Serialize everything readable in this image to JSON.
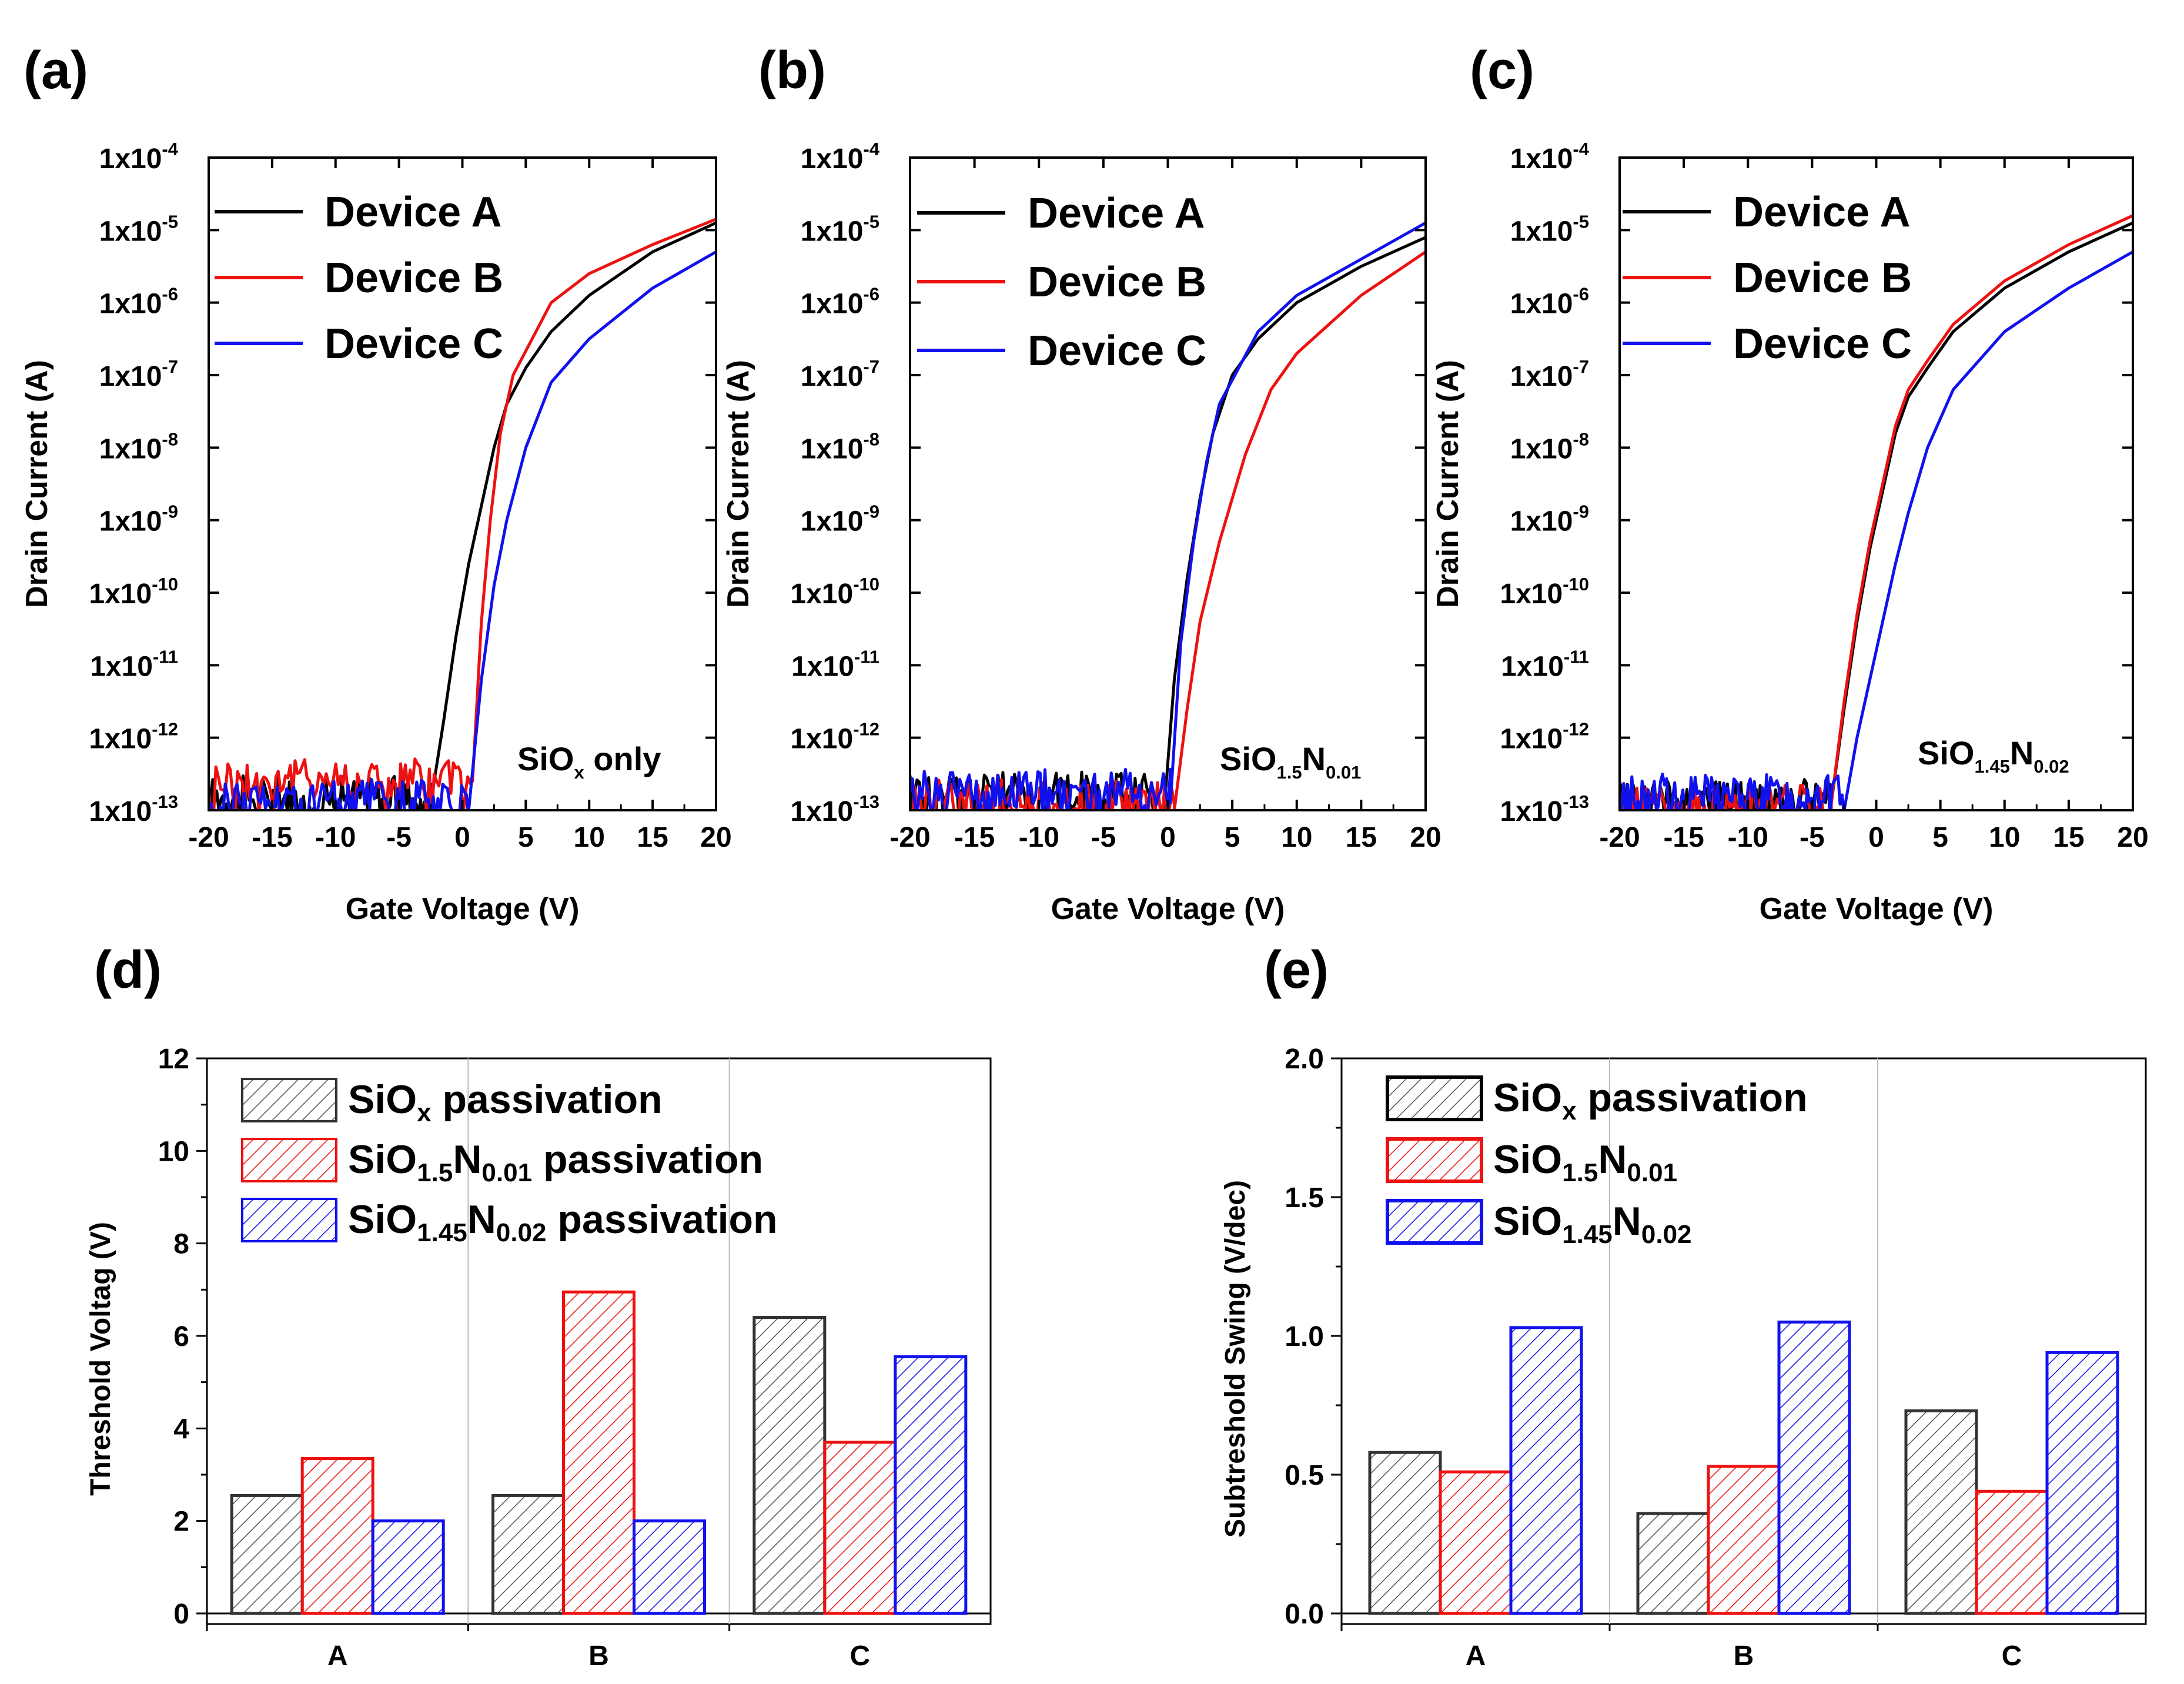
{
  "panels": {
    "a": {
      "label": "(a)",
      "annotation": {
        "base": "SiO",
        "sub": "x",
        "tail": " only"
      },
      "legend": [
        "Device A",
        "Device B",
        "Device C"
      ]
    },
    "b": {
      "label": "(b)",
      "annotation": {
        "base": "SiO",
        "sub": "1.5",
        "base2": "N",
        "sub2": "0.01"
      },
      "legend": [
        "Device A",
        "Device B",
        "Device C"
      ]
    },
    "c": {
      "label": "(c)",
      "annotation": {
        "base": "SiO",
        "sub": "1.45",
        "base2": "N",
        "sub2": "0.02"
      },
      "legend": [
        "Device A",
        "Device B",
        "Device C"
      ]
    },
    "d": {
      "label": "(d)",
      "legend": [
        {
          "base": "SiO",
          "sub": "x",
          "tail": " passivation"
        },
        {
          "base": "SiO",
          "sub": "1.5",
          "base2": "N",
          "sub2": "0.01",
          "tail": " passivation"
        },
        {
          "base": "SiO",
          "sub": "1.45",
          "base2": "N",
          "sub2": "0.02",
          "tail": " passivation"
        }
      ]
    },
    "e": {
      "label": "(e)",
      "legend": [
        {
          "base": "SiO",
          "sub": "x",
          "tail": " passivation"
        },
        {
          "base": "SiO",
          "sub": "1.5",
          "base2": "N",
          "sub2": "0.01"
        },
        {
          "base": "SiO",
          "sub": "1.45",
          "base2": "N",
          "sub2": "0.02"
        }
      ]
    }
  },
  "colors": {
    "black": "#000000",
    "red": "#ee1111",
    "blue": "#1111ee"
  },
  "chart_data": [
    {
      "id": "a",
      "type": "line",
      "xlabel": "Gate Voltage (V)",
      "ylabel": "Drain Current (A)",
      "xlim": [
        -20,
        20
      ],
      "ylim_log10": [
        -13,
        -4
      ],
      "yscale": "log",
      "xticks": [
        -20,
        -15,
        -10,
        -5,
        0,
        5,
        10,
        15,
        20
      ],
      "yticks_exp": [
        -4,
        -5,
        -6,
        -7,
        -8,
        -9,
        -10,
        -11,
        -12,
        -13
      ],
      "ytick_prefix": "1x10",
      "series": [
        {
          "name": "Device A",
          "color": "#000000",
          "noise_range": [
            -20,
            -2.5
          ],
          "floor": -12.8,
          "points": [
            [
              -2.5,
              -12.9
            ],
            [
              -1.5,
              -11.8
            ],
            [
              -0.5,
              -10.6
            ],
            [
              0.5,
              -9.6
            ],
            [
              1.5,
              -8.8
            ],
            [
              2.5,
              -8.0
            ],
            [
              3.5,
              -7.4
            ],
            [
              5,
              -6.9
            ],
            [
              7,
              -6.4
            ],
            [
              10,
              -5.9
            ],
            [
              15,
              -5.3
            ],
            [
              20,
              -4.9
            ]
          ]
        },
        {
          "name": "Device B",
          "color": "#ee1111",
          "noise_range": [
            -20,
            0.8
          ],
          "floor": -12.55,
          "points": [
            [
              0.8,
              -12.6
            ],
            [
              1.5,
              -10.4
            ],
            [
              2.2,
              -9.0
            ],
            [
              3,
              -7.8
            ],
            [
              4,
              -7.0
            ],
            [
              5.5,
              -6.5
            ],
            [
              7,
              -6.0
            ],
            [
              10,
              -5.6
            ],
            [
              15,
              -5.2
            ],
            [
              20,
              -4.85
            ]
          ]
        },
        {
          "name": "Device C",
          "color": "#1111ee",
          "noise_range": [
            -20,
            0.5
          ],
          "floor": -12.85,
          "points": [
            [
              0.5,
              -13
            ],
            [
              1.5,
              -11.2
            ],
            [
              2.5,
              -9.9
            ],
            [
              3.5,
              -9.0
            ],
            [
              5,
              -8.0
            ],
            [
              7,
              -7.1
            ],
            [
              10,
              -6.5
            ],
            [
              15,
              -5.8
            ],
            [
              20,
              -5.3
            ]
          ]
        }
      ]
    },
    {
      "id": "b",
      "type": "line",
      "xlabel": "Gate Voltage (V)",
      "ylabel": "Drain Current (A)",
      "xlim": [
        -20,
        20
      ],
      "ylim_log10": [
        -13,
        -4
      ],
      "yscale": "log",
      "xticks": [
        -20,
        -15,
        -10,
        -5,
        0,
        5,
        10,
        15,
        20
      ],
      "yticks_exp": [
        -4,
        -5,
        -6,
        -7,
        -8,
        -9,
        -10,
        -11,
        -12,
        -13
      ],
      "ytick_prefix": "1x10",
      "series": [
        {
          "name": "Device A",
          "color": "#000000",
          "noise_range": [
            -20,
            -0.2
          ],
          "floor": -12.75,
          "points": [
            [
              -0.2,
              -12.8
            ],
            [
              0.5,
              -11.2
            ],
            [
              1.5,
              -9.8
            ],
            [
              2.5,
              -8.7
            ],
            [
              3.5,
              -7.8
            ],
            [
              5,
              -7.0
            ],
            [
              7,
              -6.5
            ],
            [
              10,
              -6.0
            ],
            [
              15,
              -5.5
            ],
            [
              20,
              -5.1
            ]
          ]
        },
        {
          "name": "Device B",
          "color": "#ee1111",
          "noise_range": [
            -20,
            0.5
          ],
          "floor": -12.85,
          "points": [
            [
              0.5,
              -13
            ],
            [
              1.5,
              -11.6
            ],
            [
              2.5,
              -10.4
            ],
            [
              4,
              -9.3
            ],
            [
              6,
              -8.1
            ],
            [
              8,
              -7.2
            ],
            [
              10,
              -6.7
            ],
            [
              15,
              -5.9
            ],
            [
              20,
              -5.3
            ]
          ]
        },
        {
          "name": "Device C",
          "color": "#1111ee",
          "noise_range": [
            -20,
            0.2
          ],
          "floor": -12.7,
          "points": [
            [
              0.2,
              -12.9
            ],
            [
              1,
              -10.7
            ],
            [
              2,
              -9.3
            ],
            [
              3,
              -8.2
            ],
            [
              4,
              -7.4
            ],
            [
              5.5,
              -6.9
            ],
            [
              7,
              -6.4
            ],
            [
              10,
              -5.9
            ],
            [
              15,
              -5.4
            ],
            [
              20,
              -4.9
            ]
          ]
        }
      ]
    },
    {
      "id": "c",
      "type": "line",
      "xlabel": "Gate Voltage (V)",
      "ylabel": "Drain Current (A)",
      "xlim": [
        -20,
        20
      ],
      "ylim_log10": [
        -13,
        -4
      ],
      "yscale": "log",
      "xticks": [
        -20,
        -15,
        -10,
        -5,
        0,
        5,
        10,
        15,
        20
      ],
      "yticks_exp": [
        -4,
        -5,
        -6,
        -7,
        -8,
        -9,
        -10,
        -11,
        -12,
        -13
      ],
      "ytick_prefix": "1x10",
      "series": [
        {
          "name": "Device A",
          "color": "#000000",
          "noise_range": [
            -20,
            -3.5
          ],
          "floor": -12.85,
          "points": [
            [
              -3.5,
              -12.9
            ],
            [
              -2.5,
              -11.6
            ],
            [
              -1.5,
              -10.4
            ],
            [
              -0.5,
              -9.4
            ],
            [
              0.5,
              -8.6
            ],
            [
              1.5,
              -7.8
            ],
            [
              2.5,
              -7.3
            ],
            [
              4,
              -6.9
            ],
            [
              6,
              -6.4
            ],
            [
              10,
              -5.8
            ],
            [
              15,
              -5.3
            ],
            [
              20,
              -4.9
            ]
          ]
        },
        {
          "name": "Device B",
          "color": "#ee1111",
          "noise_range": [
            -20,
            -3.5
          ],
          "floor": -12.9,
          "points": [
            [
              -3.5,
              -12.9
            ],
            [
              -2.5,
              -11.5
            ],
            [
              -1.5,
              -10.3
            ],
            [
              -0.5,
              -9.3
            ],
            [
              0.5,
              -8.5
            ],
            [
              1.5,
              -7.7
            ],
            [
              2.5,
              -7.2
            ],
            [
              4,
              -6.8
            ],
            [
              6,
              -6.3
            ],
            [
              10,
              -5.7
            ],
            [
              15,
              -5.2
            ],
            [
              20,
              -4.8
            ]
          ]
        },
        {
          "name": "Device C",
          "color": "#1111ee",
          "noise_range": [
            -20,
            -2.5
          ],
          "floor": -12.75,
          "points": [
            [
              -2.5,
              -13
            ],
            [
              -1.5,
              -12.0
            ],
            [
              -0.5,
              -11.2
            ],
            [
              0.5,
              -10.4
            ],
            [
              1.5,
              -9.6
            ],
            [
              2.5,
              -8.9
            ],
            [
              4,
              -8.0
            ],
            [
              6,
              -7.2
            ],
            [
              10,
              -6.4
            ],
            [
              15,
              -5.8
            ],
            [
              20,
              -5.3
            ]
          ]
        }
      ]
    },
    {
      "id": "d",
      "type": "bar",
      "ylabel": "Threshold Voltag (V)",
      "categories": [
        "A",
        "B",
        "C"
      ],
      "ylim": [
        0,
        12
      ],
      "yticks": [
        0,
        2,
        4,
        6,
        8,
        10,
        12
      ],
      "series": [
        {
          "name": "SiOx passivation",
          "color": "#000000",
          "values": [
            2.55,
            2.55,
            6.4
          ]
        },
        {
          "name": "SiO1.5N0.01 passivation",
          "color": "#ee1111",
          "values": [
            3.35,
            6.95,
            3.7
          ]
        },
        {
          "name": "SiO1.45N0.02 passivation",
          "color": "#1111ee",
          "values": [
            2.0,
            2.0,
            5.55
          ]
        }
      ]
    },
    {
      "id": "e",
      "type": "bar",
      "ylabel": "Subtreshold Swing (V/dec)",
      "categories": [
        "A",
        "B",
        "C"
      ],
      "ylim": [
        0,
        2.0
      ],
      "yticks": [
        0.0,
        0.5,
        1.0,
        1.5,
        2.0
      ],
      "ytick_labels": [
        "0.0",
        "0.5",
        "1.0",
        "1.5",
        "2.0"
      ],
      "series": [
        {
          "name": "SiOx passivation",
          "color": "#000000",
          "values": [
            0.58,
            0.36,
            0.73
          ]
        },
        {
          "name": "SiO1.5N0.01",
          "color": "#ee1111",
          "values": [
            0.51,
            0.53,
            0.44
          ]
        },
        {
          "name": "SiO1.45N0.02",
          "color": "#1111ee",
          "values": [
            1.03,
            1.05,
            0.94
          ]
        }
      ]
    }
  ]
}
